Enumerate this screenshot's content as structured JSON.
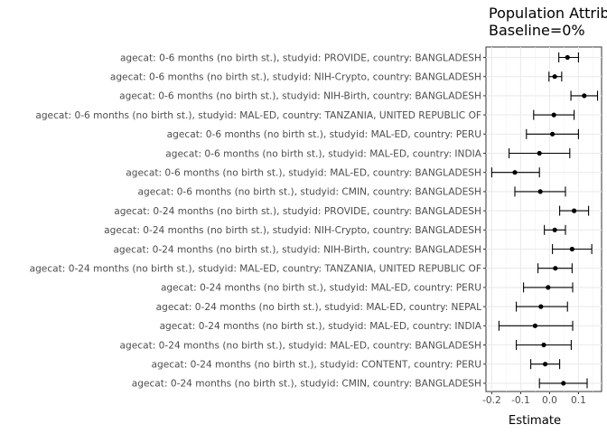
{
  "chart_data": {
    "type": "forest",
    "title_lines": [
      "Population Attributable Risk",
      "Baseline=0%"
    ],
    "xlabel": "Estimate",
    "xlim": [
      -0.22,
      0.18
    ],
    "xticks": [
      -0.2,
      -0.1,
      0.0,
      0.1
    ],
    "xtick_labels": [
      "-0.2",
      "-0.1",
      "0.0",
      "0.1"
    ],
    "grid": true,
    "rows": [
      {
        "label": "agecat: 0-6 months (no birth st.), studyid: PROVIDE, country: BANGLADESH",
        "estimate": 0.062,
        "lower": 0.032,
        "upper": 0.1
      },
      {
        "label": "agecat: 0-6 months (no birth st.), studyid: NIH-Crypto, country: BANGLADESH",
        "estimate": 0.018,
        "lower": -0.002,
        "upper": 0.042
      },
      {
        "label": "agecat: 0-6 months (no birth st.), studyid: NIH-Birth, country: BANGLADESH",
        "estimate": 0.12,
        "lower": 0.074,
        "upper": 0.166
      },
      {
        "label": "agecat: 0-6 months (no birth st.), studyid: MAL-ED, country: TANZANIA, UNITED REPUBLIC OF",
        "estimate": 0.015,
        "lower": -0.055,
        "upper": 0.085
      },
      {
        "label": "agecat: 0-6 months (no birth st.), studyid: MAL-ED, country: PERU",
        "estimate": 0.01,
        "lower": -0.08,
        "upper": 0.1
      },
      {
        "label": "agecat: 0-6 months (no birth st.), studyid: MAL-ED, country: INDIA",
        "estimate": -0.035,
        "lower": -0.14,
        "upper": 0.07
      },
      {
        "label": "agecat: 0-6 months (no birth st.), studyid: MAL-ED, country: BANGLADESH",
        "estimate": -0.12,
        "lower": -0.2,
        "upper": -0.035
      },
      {
        "label": "agecat: 0-6 months (no birth st.), studyid: CMIN, country: BANGLADESH",
        "estimate": -0.032,
        "lower": -0.12,
        "upper": 0.055
      },
      {
        "label": "agecat: 0-24 months (no birth st.), studyid: PROVIDE, country: BANGLADESH",
        "estimate": 0.085,
        "lower": 0.035,
        "upper": 0.135
      },
      {
        "label": "agecat: 0-24 months (no birth st.), studyid: NIH-Crypto, country: BANGLADESH",
        "estimate": 0.018,
        "lower": -0.018,
        "upper": 0.055
      },
      {
        "label": "agecat: 0-24 months (no birth st.), studyid: NIH-Birth, country: BANGLADESH",
        "estimate": 0.078,
        "lower": 0.01,
        "upper": 0.146
      },
      {
        "label": "agecat: 0-24 months (no birth st.), studyid: MAL-ED, country: TANZANIA, UNITED REPUBLIC OF",
        "estimate": 0.02,
        "lower": -0.04,
        "upper": 0.078
      },
      {
        "label": "agecat: 0-24 months (no birth st.), studyid: MAL-ED, country: PERU",
        "estimate": -0.005,
        "lower": -0.09,
        "upper": 0.08
      },
      {
        "label": "agecat: 0-24 months (no birth st.), studyid: MAL-ED, country: NEPAL",
        "estimate": -0.03,
        "lower": -0.115,
        "upper": 0.062
      },
      {
        "label": "agecat: 0-24 months (no birth st.), studyid: MAL-ED, country: INDIA",
        "estimate": -0.05,
        "lower": -0.175,
        "upper": 0.08
      },
      {
        "label": "agecat: 0-24 months (no birth st.), studyid: MAL-ED, country: BANGLADESH",
        "estimate": -0.02,
        "lower": -0.115,
        "upper": 0.075
      },
      {
        "label": "agecat: 0-24 months (no birth st.), studyid: CONTENT, country: PERU",
        "estimate": -0.015,
        "lower": -0.065,
        "upper": 0.035
      },
      {
        "label": "agecat: 0-24 months (no birth st.), studyid: CMIN, country: BANGLADESH",
        "estimate": 0.048,
        "lower": -0.035,
        "upper": 0.13
      }
    ]
  }
}
